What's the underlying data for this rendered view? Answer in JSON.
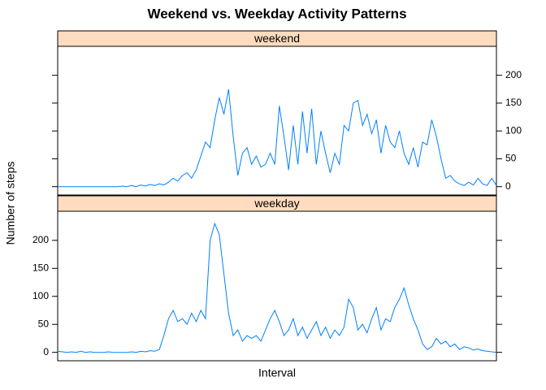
{
  "chart_data": {
    "type": "line",
    "title": "Weekend vs. Weekday Activity Patterns",
    "xlabel": "Interval",
    "ylabel": "Number of steps",
    "ylim": [
      -15,
      252
    ],
    "yticks": [
      0,
      50,
      100,
      150,
      200
    ],
    "color": "#0080ff",
    "series": [
      {
        "name": "weekend",
        "values": [
          0,
          0,
          0,
          0,
          0,
          0,
          0,
          0,
          0,
          0,
          0,
          0,
          0,
          0,
          1,
          0,
          2,
          0,
          3,
          1,
          4,
          2,
          5,
          3,
          8,
          15,
          10,
          20,
          25,
          15,
          30,
          55,
          80,
          70,
          120,
          160,
          130,
          175,
          90,
          20,
          60,
          70,
          40,
          55,
          35,
          40,
          60,
          40,
          145,
          90,
          30,
          110,
          40,
          135,
          60,
          140,
          40,
          100,
          60,
          25,
          60,
          40,
          110,
          100,
          150,
          155,
          110,
          130,
          95,
          120,
          60,
          110,
          80,
          70,
          100,
          60,
          40,
          70,
          35,
          80,
          75,
          120,
          90,
          50,
          15,
          20,
          10,
          5,
          2,
          8,
          3,
          15,
          5,
          2,
          15,
          2
        ]
      },
      {
        "name": "weekday",
        "values": [
          2,
          1,
          0,
          1,
          0,
          2,
          0,
          1,
          0,
          0,
          0,
          1,
          0,
          0,
          0,
          0,
          1,
          0,
          2,
          1,
          3,
          2,
          5,
          30,
          60,
          75,
          55,
          60,
          50,
          70,
          55,
          75,
          60,
          200,
          230,
          210,
          140,
          70,
          30,
          40,
          20,
          30,
          25,
          30,
          20,
          40,
          60,
          75,
          55,
          30,
          40,
          60,
          30,
          45,
          25,
          40,
          55,
          30,
          45,
          25,
          40,
          30,
          45,
          95,
          80,
          40,
          50,
          35,
          60,
          80,
          40,
          60,
          55,
          80,
          95,
          115,
          85,
          60,
          40,
          15,
          5,
          10,
          25,
          15,
          20,
          10,
          15,
          5,
          10,
          8,
          4,
          6,
          3,
          2,
          1,
          0
        ]
      }
    ]
  }
}
